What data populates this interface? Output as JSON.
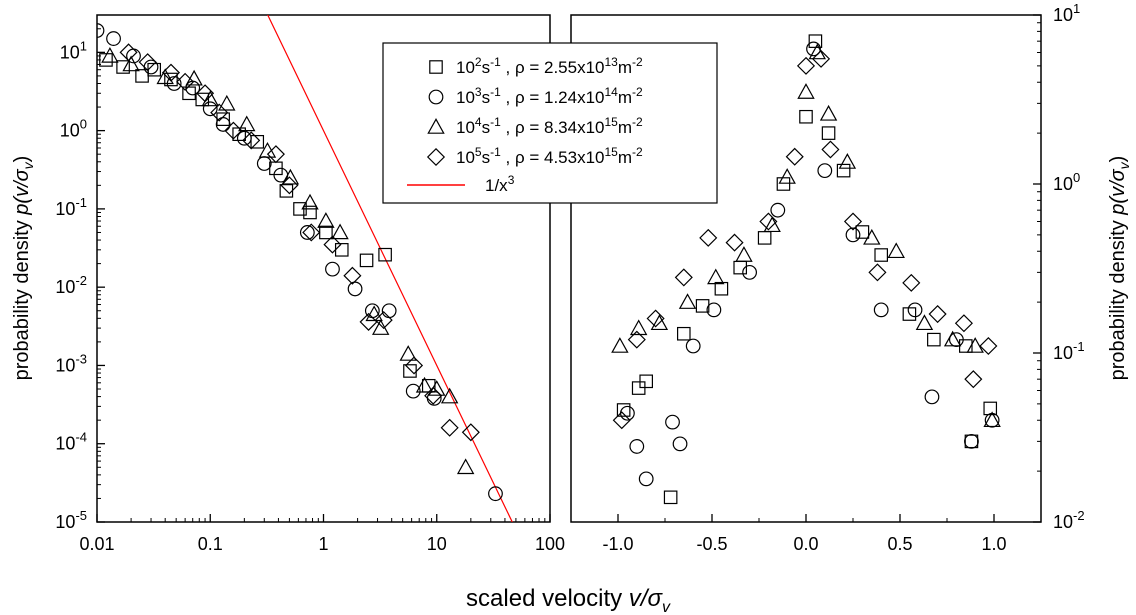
{
  "figure": {
    "xlabel_main": "scaled velocity ",
    "xlabel_sym": "v/σ",
    "xlabel_sub": "v",
    "ylabel_left_main": "probability density ",
    "ylabel_left_sym": "p(v/σ",
    "ylabel_left_sub": "v",
    "ylabel_left_close": ")",
    "ylabel_right_main": "probability density ",
    "ylabel_right_sym": "p(v/σ",
    "ylabel_right_sub": "v",
    "ylabel_right_close": ")"
  },
  "legend": {
    "entries": [
      {
        "marker": "square",
        "rate_base": "10",
        "rate_exp": "2",
        "rate_unit": "s",
        "rate_unit_exp": "-1",
        "rho_text": " , ρ = 2.55x10",
        "rho_exp": "13",
        "rho_unit": "m",
        "rho_unit_exp": "-2"
      },
      {
        "marker": "circle",
        "rate_base": "10",
        "rate_exp": "3",
        "rate_unit": "s",
        "rate_unit_exp": "-1",
        "rho_text": " , ρ = 1.24x10",
        "rho_exp": "14",
        "rho_unit": "m",
        "rho_unit_exp": "-2"
      },
      {
        "marker": "triangle",
        "rate_base": "10",
        "rate_exp": "4",
        "rate_unit": "s",
        "rate_unit_exp": "-1",
        "rho_text": " , ρ = 8.34x10",
        "rho_exp": "15",
        "rho_unit": "m",
        "rho_unit_exp": "-2"
      },
      {
        "marker": "diamond",
        "rate_base": "10",
        "rate_exp": "5",
        "rate_unit": "s",
        "rate_unit_exp": "-1",
        "rho_text": " , ρ = 4.53x10",
        "rho_exp": "15",
        "rho_unit": "m",
        "rho_unit_exp": "-2"
      }
    ],
    "fit_label_base": "1/x",
    "fit_label_exp": "3",
    "fit_color": "#ff0000"
  },
  "chart_data": [
    {
      "type": "scatter",
      "xscale": "log",
      "yscale": "log",
      "xlim": [
        0.01,
        100
      ],
      "ylim": [
        1e-05,
        30
      ],
      "x_ticks": [
        {
          "v": 0.01,
          "label": "0.01"
        },
        {
          "v": 0.1,
          "label": "0.1"
        },
        {
          "v": 1,
          "label": "1"
        },
        {
          "v": 10,
          "label": "10"
        },
        {
          "v": 100,
          "label": "100"
        }
      ],
      "y_ticks": [
        {
          "v": 10,
          "base": "10",
          "exp": "1"
        },
        {
          "v": 1,
          "base": "10",
          "exp": "0"
        },
        {
          "v": 0.1,
          "base": "10",
          "exp": "-1"
        },
        {
          "v": 0.01,
          "base": "10",
          "exp": "-2"
        },
        {
          "v": 0.001,
          "base": "10",
          "exp": "-3"
        },
        {
          "v": 0.0001,
          "base": "10",
          "exp": "-4"
        },
        {
          "v": 1e-05,
          "base": "10",
          "exp": "-5"
        }
      ],
      "series": [
        {
          "marker": "square",
          "points": [
            [
              0.012,
              8.0
            ],
            [
              0.017,
              6.5
            ],
            [
              0.025,
              5.0
            ],
            [
              0.032,
              6.0
            ],
            [
              0.045,
              4.5
            ],
            [
              0.065,
              3.0
            ],
            [
              0.085,
              2.5
            ],
            [
              0.13,
              1.4
            ],
            [
              0.18,
              0.9
            ],
            [
              0.26,
              0.72
            ],
            [
              0.38,
              0.33
            ],
            [
              0.47,
              0.17
            ],
            [
              0.62,
              0.1
            ],
            [
              0.76,
              0.09
            ],
            [
              1.05,
              0.05
            ],
            [
              1.45,
              0.03
            ],
            [
              2.4,
              0.022
            ],
            [
              3.5,
              0.026
            ],
            [
              5.8,
              0.00085
            ],
            [
              8.5,
              0.00055
            ]
          ]
        },
        {
          "marker": "circle",
          "points": [
            [
              0.01,
              19.0
            ],
            [
              0.014,
              15.0
            ],
            [
              0.021,
              9.0
            ],
            [
              0.03,
              6.5
            ],
            [
              0.048,
              4.0
            ],
            [
              0.07,
              3.5
            ],
            [
              0.1,
              1.9
            ],
            [
              0.13,
              1.2
            ],
            [
              0.2,
              0.8
            ],
            [
              0.3,
              0.38
            ],
            [
              0.42,
              0.27
            ],
            [
              0.72,
              0.05
            ],
            [
              1.2,
              0.017
            ],
            [
              1.9,
              0.0095
            ],
            [
              2.7,
              0.005
            ],
            [
              3.8,
              0.005
            ],
            [
              6.2,
              0.00047
            ],
            [
              9.5,
              0.00038
            ],
            [
              33,
              2.3e-05
            ]
          ]
        },
        {
          "marker": "triangle",
          "points": [
            [
              0.013,
              9.0
            ],
            [
              0.02,
              7.0
            ],
            [
              0.04,
              4.8
            ],
            [
              0.072,
              4.6
            ],
            [
              0.1,
              2.5
            ],
            [
              0.14,
              2.2
            ],
            [
              0.21,
              1.2
            ],
            [
              0.32,
              0.55
            ],
            [
              0.51,
              0.25
            ],
            [
              0.76,
              0.12
            ],
            [
              1.05,
              0.07
            ],
            [
              1.4,
              0.05
            ],
            [
              2.8,
              0.0045
            ],
            [
              3.2,
              0.003
            ],
            [
              5.6,
              0.0014
            ],
            [
              7.8,
              0.00055
            ],
            [
              10,
              0.0005
            ],
            [
              13,
              0.0004
            ],
            [
              18,
              5e-05
            ]
          ]
        },
        {
          "marker": "diamond",
          "points": [
            [
              0.019,
              10.0
            ],
            [
              0.028,
              7.5
            ],
            [
              0.045,
              5.5
            ],
            [
              0.06,
              4.2
            ],
            [
              0.09,
              3.0
            ],
            [
              0.12,
              1.7
            ],
            [
              0.16,
              1.0
            ],
            [
              0.23,
              0.75
            ],
            [
              0.38,
              0.5
            ],
            [
              0.5,
              0.2
            ],
            [
              0.78,
              0.05
            ],
            [
              1.2,
              0.035
            ],
            [
              1.8,
              0.014
            ],
            [
              2.5,
              0.0036
            ],
            [
              3.4,
              0.0038
            ],
            [
              6.3,
              0.001
            ],
            [
              9.3,
              0.00041
            ],
            [
              13,
              0.00016
            ],
            [
              20,
              0.00014
            ]
          ]
        }
      ],
      "fit": {
        "label": "1/x^3",
        "x_start": 0.316,
        "x_end": 50,
        "curve": "1/x^3"
      }
    },
    {
      "type": "scatter",
      "xscale": "linear",
      "yscale": "log",
      "xlim": [
        -1.25,
        1.25
      ],
      "ylim": [
        0.01,
        10
      ],
      "x_ticks": [
        {
          "v": -1.0,
          "label": "-1.0"
        },
        {
          "v": -0.5,
          "label": "-0.5"
        },
        {
          "v": 0.0,
          "label": "0.0"
        },
        {
          "v": 0.5,
          "label": "0.5"
        },
        {
          "v": 1.0,
          "label": "1.0"
        }
      ],
      "y_ticks": [
        {
          "v": 10,
          "base": "10",
          "exp": "1"
        },
        {
          "v": 1,
          "base": "10",
          "exp": "0"
        },
        {
          "v": 0.1,
          "base": "10",
          "exp": "-1"
        },
        {
          "v": 0.01,
          "base": "10",
          "exp": "-2"
        }
      ],
      "series": [
        {
          "marker": "square",
          "points": [
            [
              -0.97,
              0.046
            ],
            [
              -0.89,
              0.062
            ],
            [
              -0.85,
              0.068
            ],
            [
              -0.72,
              0.014
            ],
            [
              -0.65,
              0.13
            ],
            [
              -0.55,
              0.19
            ],
            [
              -0.45,
              0.24
            ],
            [
              -0.35,
              0.32
            ],
            [
              -0.22,
              0.48
            ],
            [
              -0.12,
              1.0
            ],
            [
              0.0,
              2.5
            ],
            [
              0.05,
              7.0
            ],
            [
              0.12,
              2.0
            ],
            [
              0.2,
              1.2
            ],
            [
              0.3,
              0.52
            ],
            [
              0.4,
              0.38
            ],
            [
              0.55,
              0.17
            ],
            [
              0.68,
              0.12
            ],
            [
              0.85,
              0.11
            ],
            [
              0.98,
              0.047
            ],
            [
              0.88,
              0.03
            ]
          ]
        },
        {
          "marker": "circle",
          "points": [
            [
              -0.95,
              0.044
            ],
            [
              -0.9,
              0.028
            ],
            [
              -0.85,
              0.018
            ],
            [
              -0.71,
              0.039
            ],
            [
              -0.67,
              0.029
            ],
            [
              -0.6,
              0.11
            ],
            [
              -0.49,
              0.18
            ],
            [
              -0.3,
              0.3
            ],
            [
              -0.15,
              0.7
            ],
            [
              0.04,
              6.3
            ],
            [
              0.1,
              1.2
            ],
            [
              0.25,
              0.5
            ],
            [
              0.4,
              0.18
            ],
            [
              0.58,
              0.18
            ],
            [
              0.67,
              0.055
            ],
            [
              0.8,
              0.12
            ],
            [
              0.88,
              0.03
            ],
            [
              0.99,
              0.04
            ]
          ]
        },
        {
          "marker": "triangle",
          "points": [
            [
              -0.99,
              0.11
            ],
            [
              -0.89,
              0.14
            ],
            [
              -0.78,
              0.15
            ],
            [
              -0.63,
              0.2
            ],
            [
              -0.48,
              0.28
            ],
            [
              -0.33,
              0.38
            ],
            [
              -0.18,
              0.57
            ],
            [
              -0.1,
              1.1
            ],
            [
              0.0,
              3.5
            ],
            [
              0.06,
              6.0
            ],
            [
              0.12,
              2.6
            ],
            [
              0.22,
              1.35
            ],
            [
              0.35,
              0.48
            ],
            [
              0.48,
              0.4
            ],
            [
              0.63,
              0.15
            ],
            [
              0.78,
              0.12
            ],
            [
              0.9,
              0.11
            ],
            [
              0.99,
              0.04
            ]
          ]
        },
        {
          "marker": "diamond",
          "points": [
            [
              -0.98,
              0.04
            ],
            [
              -0.9,
              0.12
            ],
            [
              -0.8,
              0.16
            ],
            [
              -0.65,
              0.28
            ],
            [
              -0.52,
              0.48
            ],
            [
              -0.38,
              0.45
            ],
            [
              -0.2,
              0.6
            ],
            [
              -0.06,
              1.45
            ],
            [
              0.0,
              5.0
            ],
            [
              0.08,
              5.5
            ],
            [
              0.13,
              1.6
            ],
            [
              0.25,
              0.6
            ],
            [
              0.38,
              0.3
            ],
            [
              0.56,
              0.26
            ],
            [
              0.7,
              0.17
            ],
            [
              0.84,
              0.15
            ],
            [
              0.97,
              0.11
            ],
            [
              0.89,
              0.07
            ]
          ]
        }
      ]
    }
  ]
}
